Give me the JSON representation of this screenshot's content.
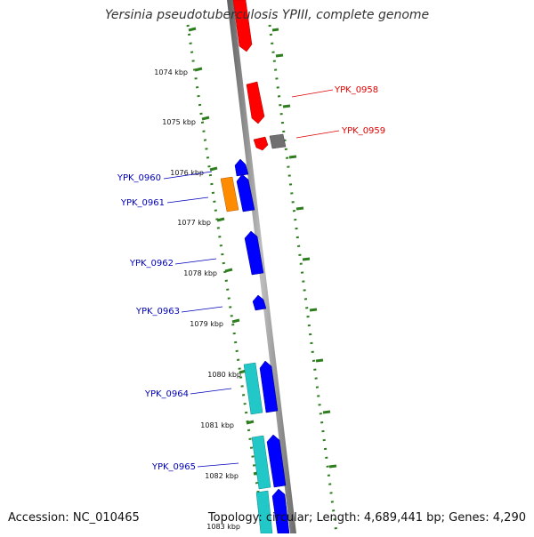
{
  "title": "Yersinia pseudotuberculosis YPIII, complete genome",
  "footer": {
    "accession": "Accession: NC_010465",
    "summary": "Topology: circular; Length: 4,689,441 bp; Genes: 4,290"
  },
  "colors": {
    "backbone": "#8a8a8a",
    "tick": "#2e7d1e",
    "forward_gene": "#ff0000",
    "other_gene": "#707070",
    "reverse_gene": "#0000ff",
    "special_gene": "#ff8c00",
    "cyan_gene": "#22c8c8",
    "label_right": "#e00000",
    "label_left": "#0000bb"
  },
  "kbp_labels": [
    "1074 kbp",
    "1075 kbp",
    "1076 kbp",
    "1077 kbp",
    "1078 kbp",
    "1079 kbp",
    "1080 kbp",
    "1081 kbp",
    "1082 kbp",
    "1083 kbp"
  ],
  "gene_labels": [
    {
      "id": "ypk0958",
      "text": "YPK_0958",
      "side": "right"
    },
    {
      "id": "ypk0959",
      "text": "YPK_0959",
      "side": "right"
    },
    {
      "id": "ypk0960",
      "text": "YPK_0960",
      "side": "left"
    },
    {
      "id": "ypk0961",
      "text": "YPK_0961",
      "side": "left"
    },
    {
      "id": "ypk0962",
      "text": "YPK_0962",
      "side": "left"
    },
    {
      "id": "ypk0963",
      "text": "YPK_0963",
      "side": "left"
    },
    {
      "id": "ypk0964",
      "text": "YPK_0964",
      "side": "left"
    },
    {
      "id": "ypk0965",
      "text": "YPK_0965",
      "side": "left"
    }
  ]
}
